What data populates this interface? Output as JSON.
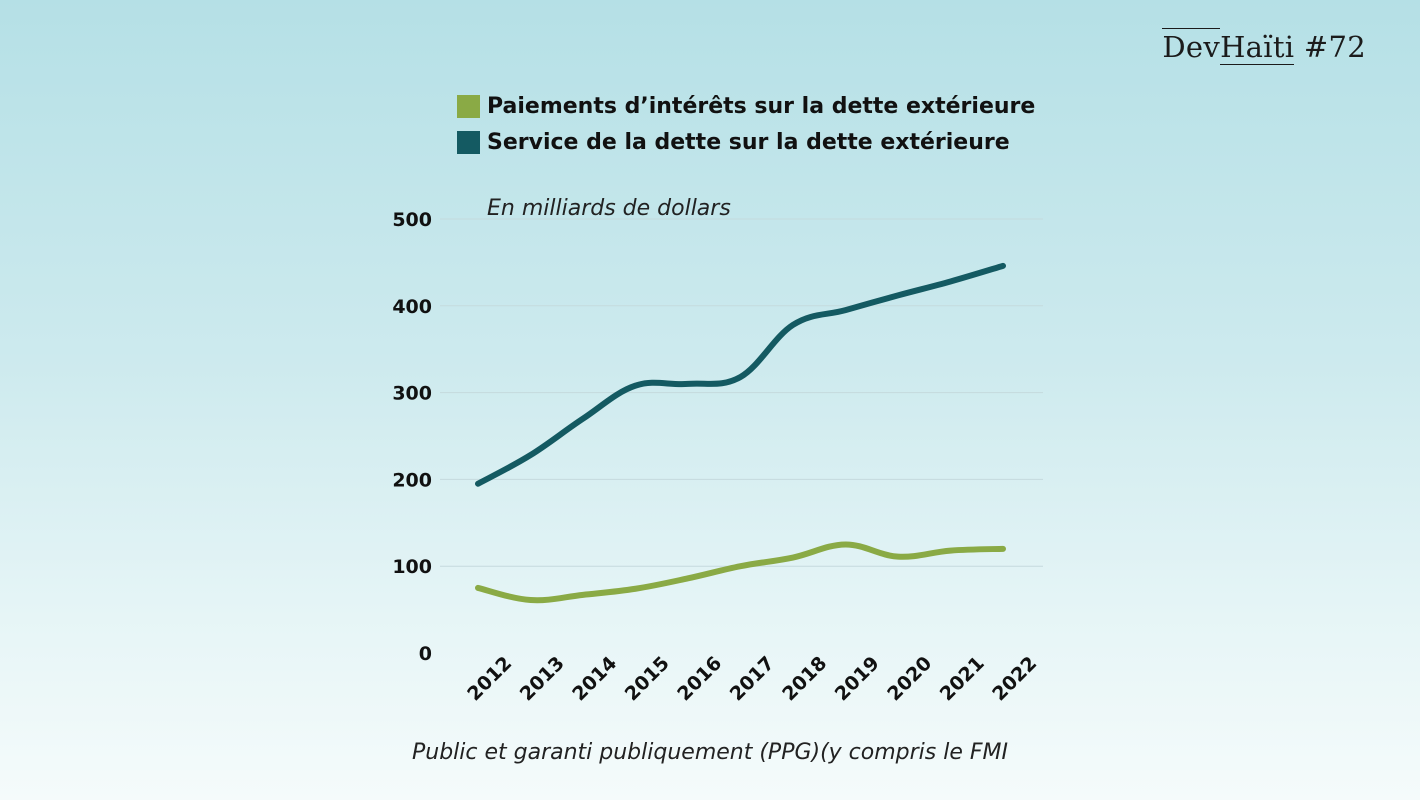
{
  "brand": {
    "dev": "Dev",
    "haiti": "Haïti",
    "issue": "#72"
  },
  "colors": {
    "interest": "#8aaa45",
    "service": "#145a62",
    "grid": "#c5dadd"
  },
  "chart_data": {
    "type": "line",
    "title": "",
    "unit_label": "En milliards de dollars",
    "footnote": "Public et garanti publiquement (PPG)(y compris le FMI",
    "x": [
      "2012",
      "2013",
      "2014",
      "2015",
      "2016",
      "2017",
      "2018",
      "2019",
      "2020",
      "2021",
      "2022"
    ],
    "ylim": [
      0,
      500
    ],
    "yticks": [
      "0",
      "100",
      "200",
      "300",
      "400",
      "500"
    ],
    "grid": true,
    "legend_position": "top",
    "series": [
      {
        "name": "Paiements d’intérêts sur la dette extérieure",
        "color": "#8aaa45",
        "values": [
          75,
          61,
          67,
          74,
          86,
          100,
          110,
          125,
          111,
          118,
          120
        ]
      },
      {
        "name": "Service de la dette sur la dette extérieure",
        "color": "#145a62",
        "values": [
          195,
          228,
          270,
          308,
          310,
          318,
          378,
          395,
          412,
          428,
          446
        ]
      }
    ]
  }
}
